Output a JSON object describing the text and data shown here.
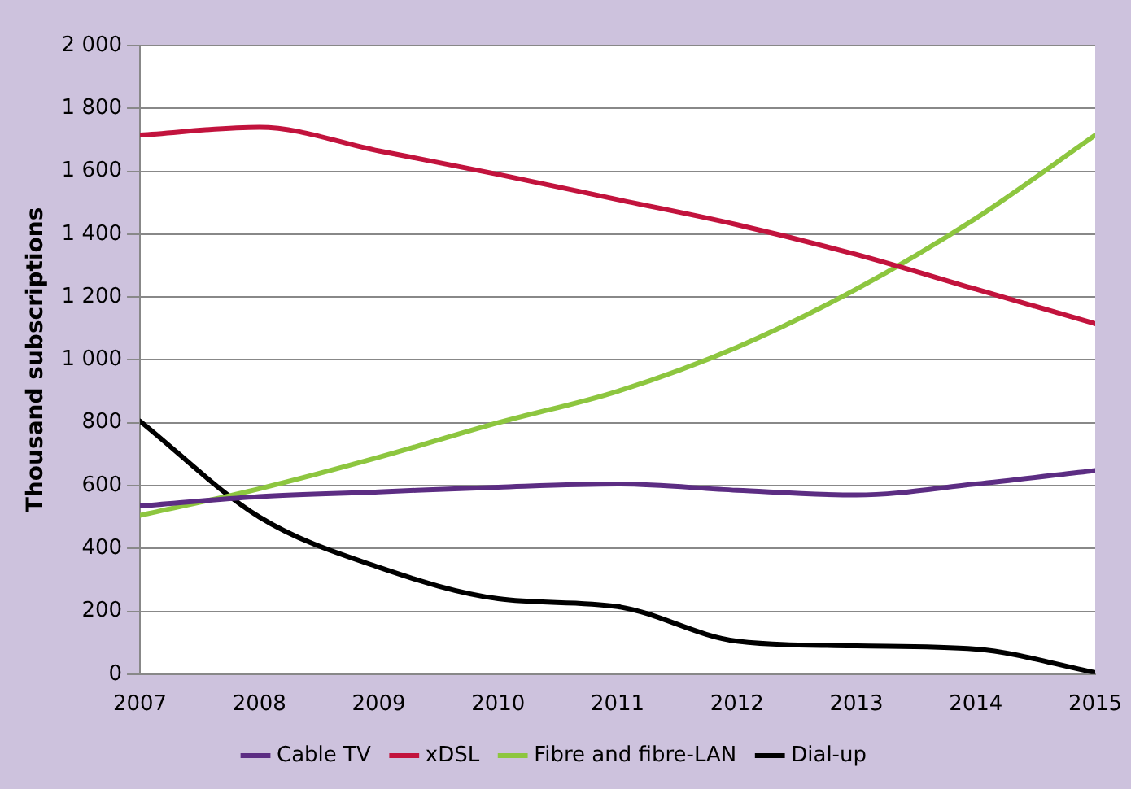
{
  "chart_data": {
    "type": "line",
    "ylabel": "Thousand subscriptions",
    "x": [
      2007,
      2008,
      2009,
      2010,
      2011,
      2012,
      2013,
      2014,
      2015
    ],
    "xlim": [
      2007,
      2015
    ],
    "xticks": [
      2007,
      2008,
      2009,
      2010,
      2011,
      2012,
      2013,
      2014,
      2015
    ],
    "ylim": [
      0,
      2000
    ],
    "yticks": [
      0,
      200,
      400,
      600,
      800,
      {
        "value": 1000,
        "label": "1 000"
      },
      {
        "value": 1200,
        "label": "1 200"
      },
      {
        "value": 1400,
        "label": "1 400"
      },
      {
        "value": 1600,
        "label": "1 600"
      },
      {
        "value": 1800,
        "label": "1 800"
      },
      {
        "value": 2000,
        "label": "2 000"
      }
    ],
    "grid": "y",
    "legend": "bottom",
    "marker": "none",
    "line_style": "solid",
    "series": [
      {
        "name": "Cable TV",
        "color": "#5c2d83",
        "values": [
          535,
          565,
          580,
          595,
          605,
          585,
          570,
          605,
          648
        ]
      },
      {
        "name": "xDSL",
        "color": "#c2133d",
        "values": [
          1715,
          1740,
          1665,
          1590,
          1510,
          1430,
          1335,
          1225,
          1115
        ]
      },
      {
        "name": "Fibre and fibre-LAN",
        "color": "#8dc63f",
        "values": [
          505,
          590,
          690,
          800,
          900,
          1040,
          1225,
          1450,
          1715
        ]
      },
      {
        "name": "Dial-up",
        "color": "#000000",
        "values": [
          805,
          500,
          340,
          240,
          215,
          105,
          90,
          80,
          5
        ]
      }
    ]
  }
}
